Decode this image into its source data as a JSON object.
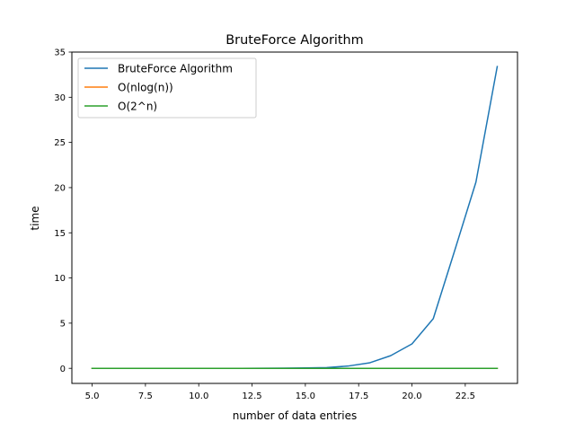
{
  "chart_data": {
    "type": "line",
    "title": "BruteForce Algorithm",
    "xlabel": "number of data entries",
    "ylabel": "time",
    "xlim": [
      4.05,
      24.95
    ],
    "ylim": [
      -1.67,
      35
    ],
    "xticks": [
      5.0,
      7.5,
      10.0,
      12.5,
      15.0,
      17.5,
      20.0,
      22.5
    ],
    "xtick_labels": [
      "5.0",
      "7.5",
      "10.0",
      "12.5",
      "15.0",
      "17.5",
      "20.0",
      "22.5"
    ],
    "yticks": [
      0,
      5,
      10,
      15,
      20,
      25,
      30,
      35
    ],
    "ytick_labels": [
      "0",
      "5",
      "10",
      "15",
      "20",
      "25",
      "30",
      "35"
    ],
    "grid": false,
    "legend_position": "top-left",
    "x": [
      5,
      6,
      7,
      8,
      9,
      10,
      11,
      12,
      13,
      14,
      15,
      16,
      17,
      18,
      19,
      20,
      21,
      22,
      23,
      24
    ],
    "series": [
      {
        "name": "BruteForce Algorithm",
        "color": "#1f77b4",
        "values": [
          0.0,
          0.0,
          0.0,
          0.0,
          0.0,
          0.0,
          0.0,
          0.0,
          0.01,
          0.02,
          0.04,
          0.08,
          0.25,
          0.6,
          1.4,
          2.7,
          5.5,
          13.0,
          20.6,
          33.4
        ]
      },
      {
        "name": "O(nlog(n))",
        "color": "#ff7f0e",
        "values": [
          0.0,
          0.0,
          0.0,
          0.0,
          0.0,
          0.0,
          0.0,
          0.0,
          0.0,
          0.0,
          0.0,
          0.0,
          0.0,
          0.0,
          0.0,
          0.0,
          0.0,
          0.0,
          0.0,
          0.0
        ]
      },
      {
        "name": "O(2^n)",
        "color": "#2ca02c",
        "values": [
          0.0,
          0.0,
          0.0,
          0.0,
          0.0,
          0.0,
          0.0,
          0.0,
          0.0,
          0.0,
          0.0,
          0.0,
          0.0,
          0.0,
          0.0,
          0.0,
          0.0,
          0.0,
          0.0,
          0.0
        ]
      }
    ]
  }
}
